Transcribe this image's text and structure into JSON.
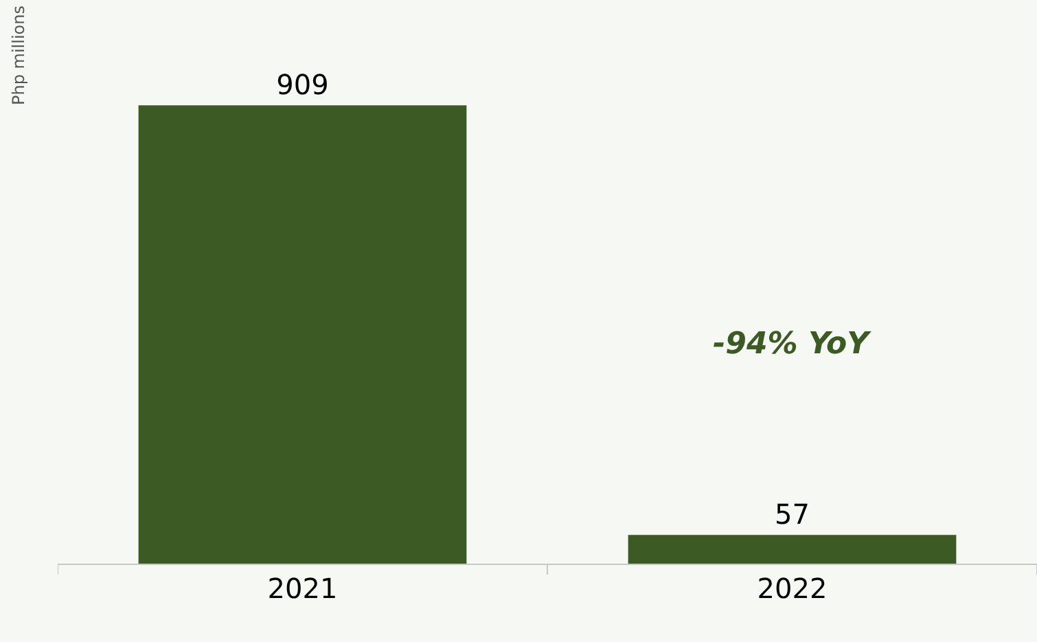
{
  "chart_data": {
    "type": "bar",
    "ylabel": "Php millions",
    "categories": [
      "2021",
      "2022"
    ],
    "values": [
      909,
      57
    ],
    "color": "#3b5a24",
    "data_labels": true,
    "annotations": [
      "-94% YoY"
    ],
    "grid": false,
    "legend": false
  }
}
